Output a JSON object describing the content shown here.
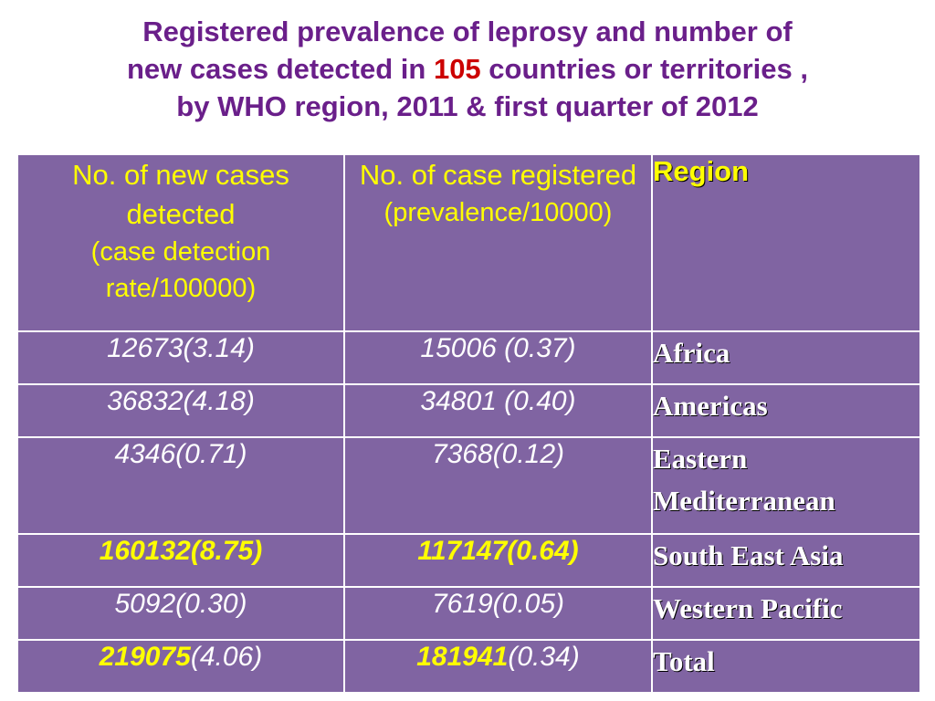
{
  "title": {
    "line1": "Registered prevalence of leprosy and number of",
    "line2_pre": "new cases detected in ",
    "line2_highlight": "105",
    "line2_post": " countries or territories ,",
    "line3": "by WHO region, 2011 & first quarter of 2012"
  },
  "table": {
    "header": {
      "col1_main": "No. of new cases detected",
      "col1_sub": "(case detection rate/100000)",
      "col2_main": "No. of case registered",
      "col2_sub": "(prevalence/10000)",
      "col3": "Region"
    },
    "rows": [
      {
        "new_cases": "12673(3.14)",
        "registered": "15006 (0.37)",
        "region": "Africa"
      },
      {
        "new_cases": "36832(4.18)",
        "registered": "34801 (0.40)",
        "region": "Americas"
      },
      {
        "new_cases": "4346(0.71)",
        "registered": "7368(0.12)",
        "region_line1": "Eastern",
        "region_line2": "Mediterranean"
      },
      {
        "new_cases": "160132(8.75)",
        "registered": "117147(0.64)",
        "region": "South East Asia"
      },
      {
        "new_cases": "5092(0.30)",
        "registered": "7619(0.05)",
        "region": "Western Pacific"
      },
      {
        "new_cases_bold": "219075",
        "new_cases_rate": "(4.06)",
        "registered_bold": "181941",
        "registered_rate": "(0.34)",
        "region": "Total"
      }
    ]
  },
  "colors": {
    "title": "#6a1f8a",
    "title_highlight": "#cc0000",
    "cell_background": "#8064a2",
    "header_text": "#ffff00",
    "cell_text": "#ffffff"
  }
}
